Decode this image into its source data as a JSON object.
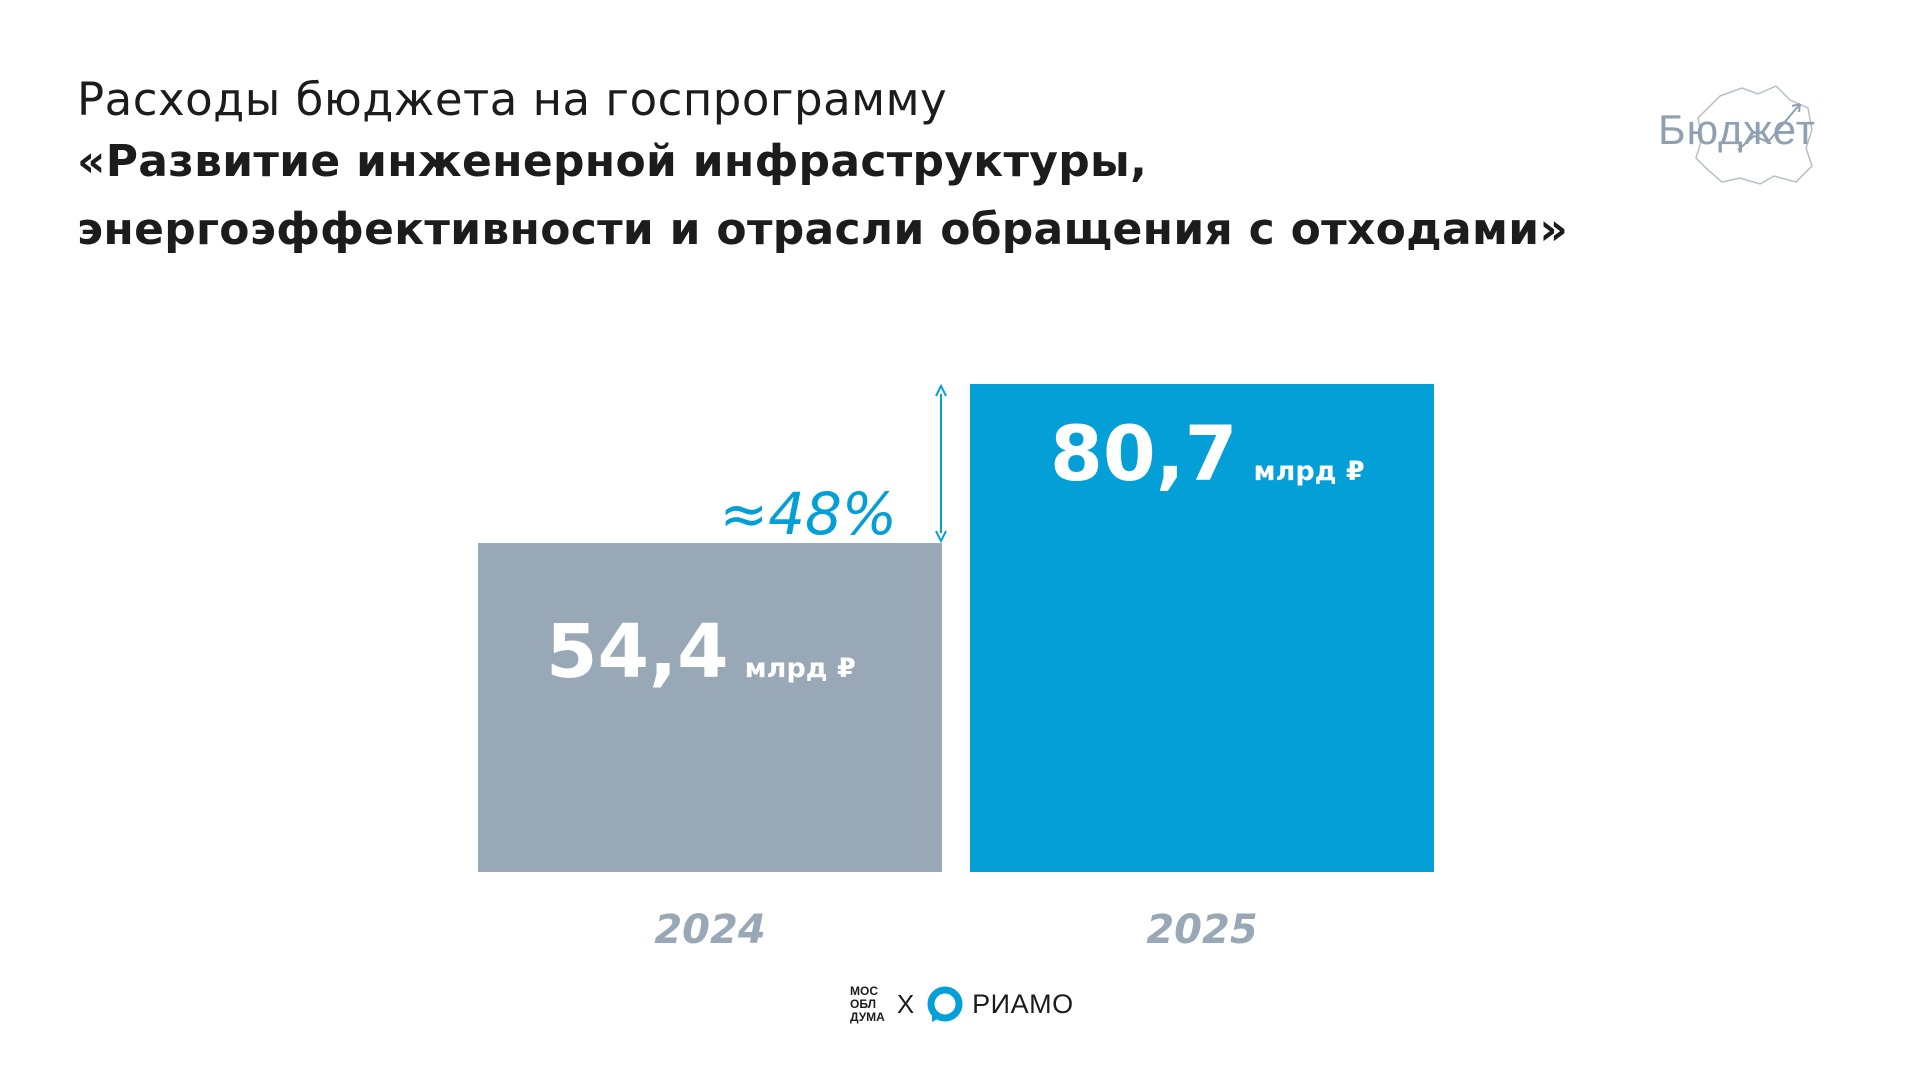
{
  "title": {
    "line1": "Расходы бюджета на госпрограмму",
    "line2": "«Развитие инженерной инфраструктуры,",
    "line3": "энергоэффективности и отрасли обращения с отходами»"
  },
  "logo": {
    "budget_text": "Бюджет"
  },
  "chart_data": {
    "type": "bar",
    "categories": [
      "2024",
      "2025"
    ],
    "values": [
      54.4,
      80.7
    ],
    "value_labels": [
      "54,4",
      "80,7"
    ],
    "unit_label": "млрд ₽",
    "colors": [
      "#99a8b7",
      "#049fd6"
    ],
    "annotation": "≈48%",
    "annotation_color": "#049fd6",
    "xlabel_color": "#99a8b7",
    "ylim": [
      0,
      80.7
    ]
  },
  "footer": {
    "left_logo": [
      "МОС",
      "ОБЛ",
      "ДУМА"
    ],
    "separator": "Х",
    "right_logo": "РИАМО",
    "right_logo_color": "#049fd6"
  }
}
